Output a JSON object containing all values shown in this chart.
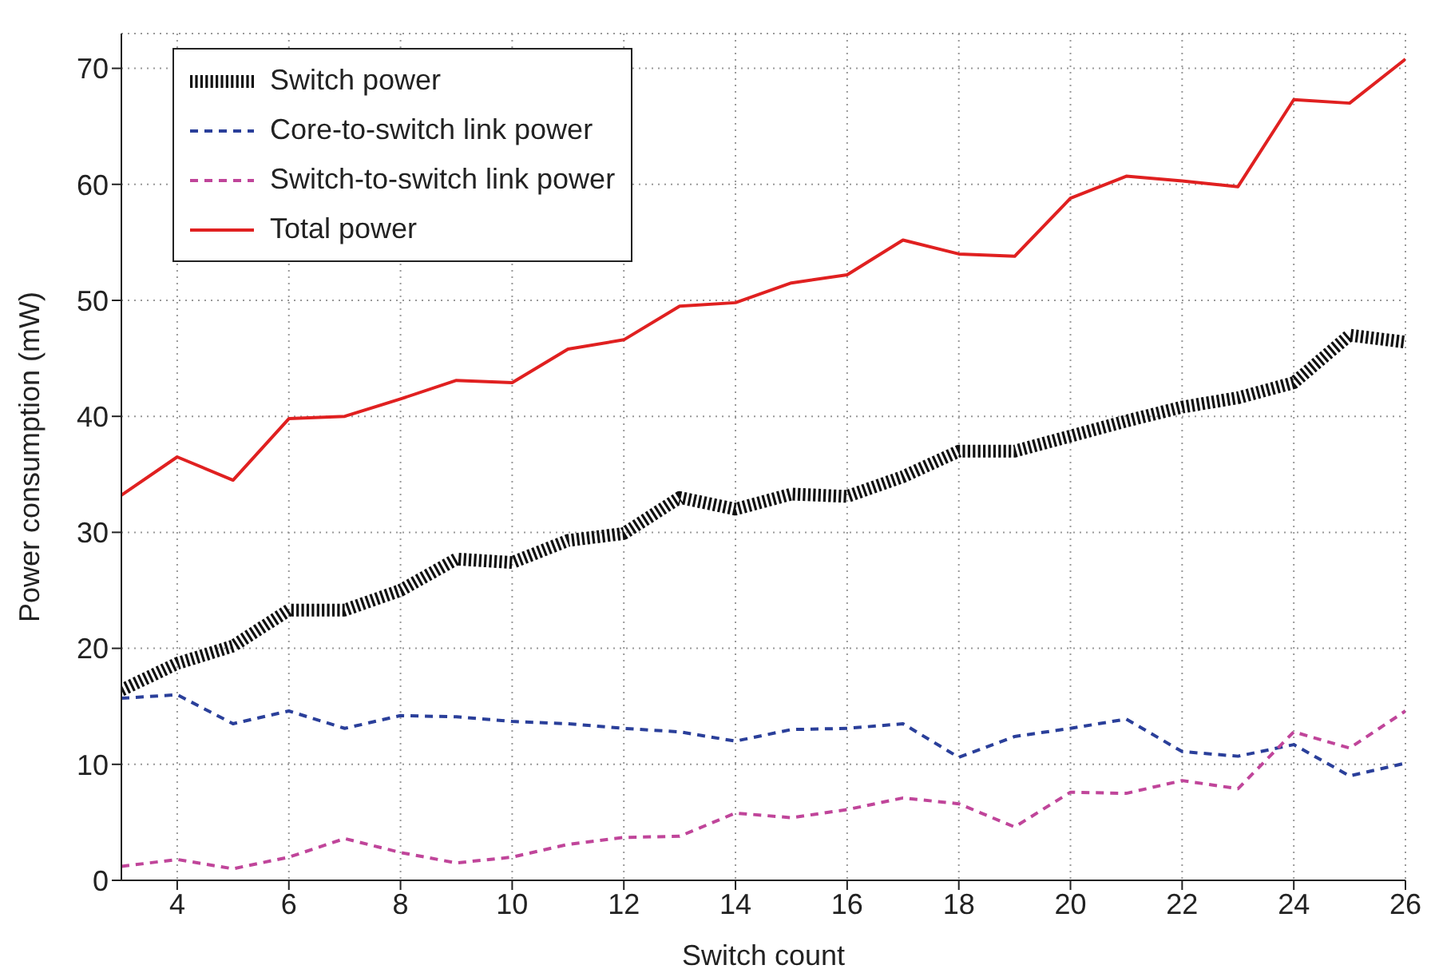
{
  "chart_data": {
    "type": "line",
    "xlabel": "Switch count",
    "ylabel": "Power consumption (mW)",
    "x": [
      3,
      4,
      5,
      6,
      7,
      8,
      9,
      10,
      11,
      12,
      13,
      14,
      15,
      16,
      17,
      18,
      19,
      20,
      21,
      22,
      23,
      24,
      25,
      26
    ],
    "xlim": [
      3,
      26
    ],
    "xticks": [
      4,
      6,
      8,
      10,
      12,
      14,
      16,
      18,
      20,
      22,
      24,
      26
    ],
    "ylim": [
      0,
      73
    ],
    "yticks": [
      0,
      10,
      20,
      30,
      40,
      50,
      60,
      70
    ],
    "grid": true,
    "legend": "top left",
    "marker": "none",
    "series": [
      {
        "name": "Switch power",
        "color": "#111111",
        "line_style": "dotted",
        "values": [
          16.4,
          18.7,
          20.2,
          23.3,
          23.3,
          25,
          27.7,
          27.4,
          29.3,
          29.9,
          33,
          32,
          33.3,
          33.1,
          34.8,
          37,
          37,
          38.3,
          39.6,
          40.8,
          41.6,
          42.9,
          47,
          46.4
        ]
      },
      {
        "name": "Core-to-switch link power",
        "color": "#2a3f9a",
        "line_style": "dashed",
        "values": [
          15.7,
          16,
          13.5,
          14.6,
          13.1,
          14.2,
          14.1,
          13.7,
          13.5,
          13.1,
          12.8,
          12,
          13,
          13.1,
          13.5,
          10.6,
          12.4,
          13.1,
          13.9,
          11.1,
          10.7,
          11.7,
          9,
          10.1
        ]
      },
      {
        "name": "Switch-to-switch link power",
        "color": "#c0459a",
        "line_style": "dashed",
        "values": [
          1.2,
          1.8,
          1,
          2,
          3.6,
          2.4,
          1.5,
          2,
          3.1,
          3.7,
          3.8,
          5.8,
          5.4,
          6.1,
          7.1,
          6.6,
          4.6,
          7.6,
          7.5,
          8.6,
          7.9,
          12.8,
          11.4,
          14.6
        ]
      },
      {
        "name": "Total power",
        "color": "#e02020",
        "line_style": "solid",
        "values": [
          33.2,
          36.5,
          34.5,
          39.8,
          40,
          41.5,
          43.1,
          42.9,
          45.8,
          46.6,
          49.5,
          49.8,
          51.5,
          52.2,
          55.2,
          54,
          53.8,
          58.8,
          60.7,
          60.3,
          59.8,
          67.3,
          67,
          70.8
        ]
      }
    ]
  }
}
